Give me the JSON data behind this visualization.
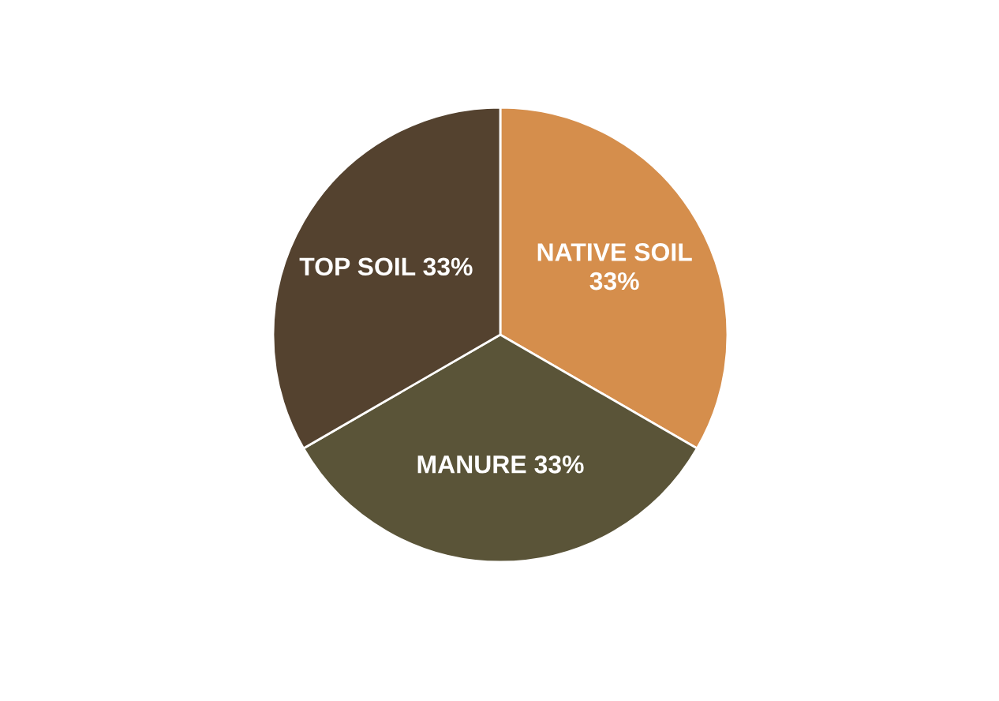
{
  "chart_data": {
    "type": "pie",
    "categories": [
      "NATIVE SOIL",
      "MANURE",
      "TOP SOIL"
    ],
    "values": [
      33,
      33,
      33
    ],
    "value_labels": [
      "33%",
      "33%",
      "33%"
    ],
    "colors": [
      "#d58e4c",
      "#5a5438",
      "#54422f"
    ]
  }
}
